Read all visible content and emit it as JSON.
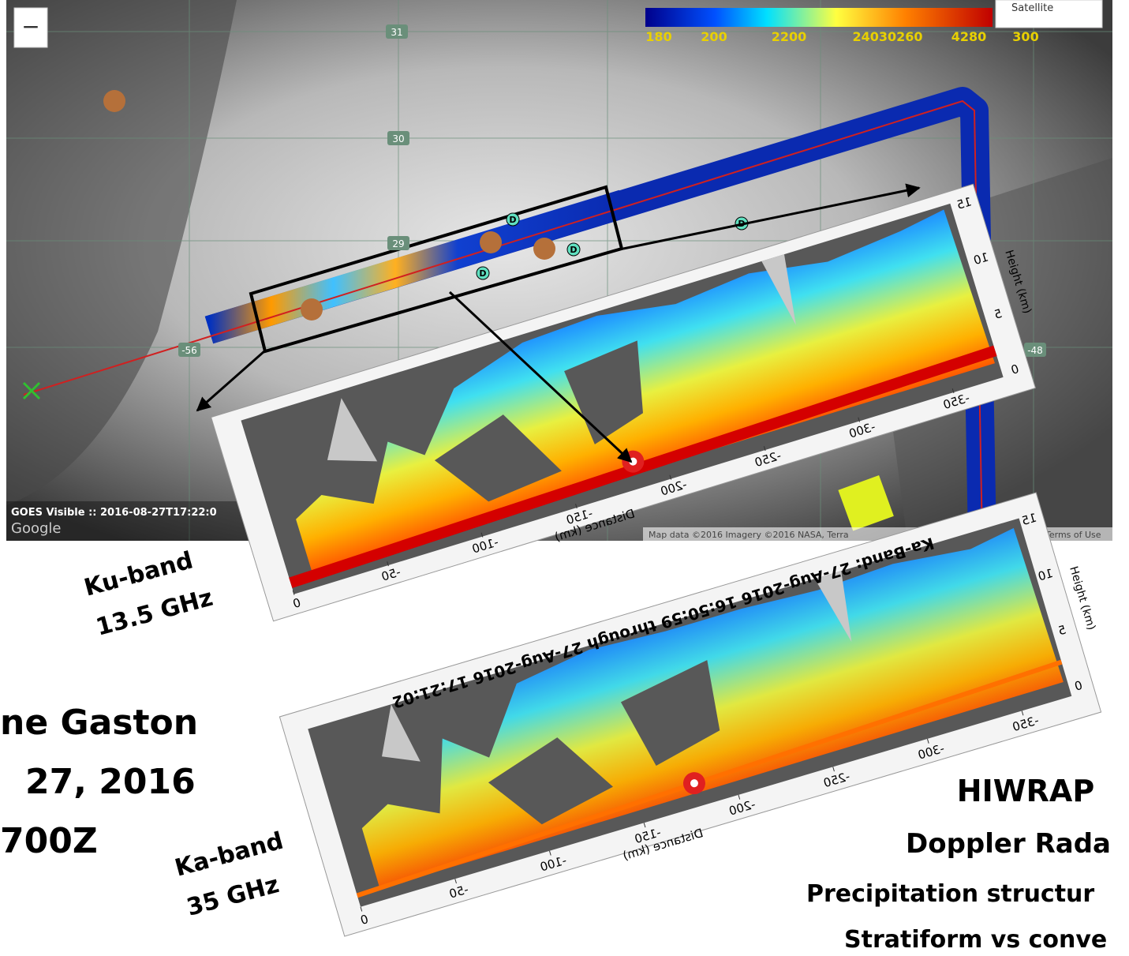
{
  "map": {
    "zoom_out": "−",
    "map_type": "Satellite",
    "colorbar_labels": [
      "180",
      "200",
      "2200",
      "24030260",
      "4280",
      "300"
    ],
    "grid_labels": [
      "31",
      "30",
      "29",
      "-56",
      "-48"
    ],
    "markers": [
      "D",
      "D",
      "D",
      "D"
    ],
    "caption": "GOES Visible :: 2016-08-27T17:22:0",
    "logo": "Google",
    "attribution": "Map data ©2016 Imagery ©2016 NASA, Terra",
    "terms": "Terms of Use"
  },
  "ku_panel": {
    "height_ticks": [
      "15",
      "10",
      "5",
      "0"
    ],
    "height_label": "Height (km)",
    "distance_ticks": [
      "0",
      "-50",
      "-100",
      "-150",
      "-200",
      "-250",
      "-300",
      "-350"
    ],
    "distance_label": "Distance (km)",
    "band_label": "Ku-band",
    "frequency": "13.5 GHz"
  },
  "ka_panel": {
    "title": "Ka-Band: 27-Aug-2016 16:50:59 through 27-Aug-2016 17:21:02",
    "height_ticks": [
      "15",
      "10",
      "5",
      "0"
    ],
    "height_label": "Height (km)",
    "distance_ticks": [
      "0",
      "-50",
      "-100",
      "-150",
      "-200",
      "-250",
      "-300",
      "-350"
    ],
    "distance_label": "Distance (km)",
    "band_label": "Ka-band",
    "frequency": "35 GHz"
  },
  "left_text": [
    "ne Gaston",
    "27, 2016",
    "700Z"
  ],
  "right_text": [
    "HIWRAP",
    "Doppler Rada",
    "Precipitation structur",
    "Stratiform vs conve"
  ]
}
